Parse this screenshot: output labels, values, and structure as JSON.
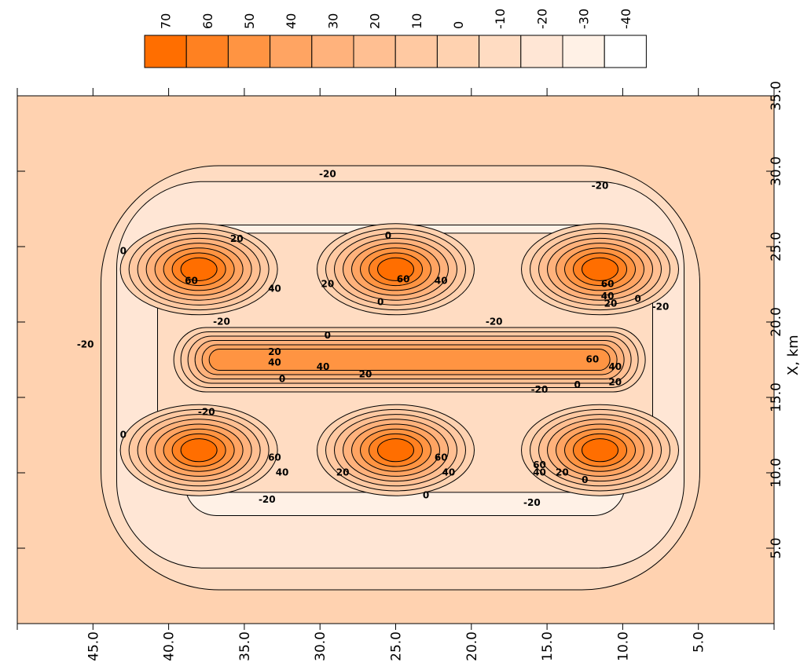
{
  "chart_data": {
    "type": "heatmap",
    "orientation_note_hidden": "",
    "legend": {
      "labels": [
        "70",
        "60",
        "50",
        "40",
        "30",
        "20",
        "10",
        "0",
        "-10",
        "-20",
        "-30",
        "-40"
      ],
      "colors": [
        "#ff6e00",
        "#ff8121",
        "#ff9442",
        "#ffa462",
        "#ffb27c",
        "#ffbf92",
        "#ffc9a2",
        "#ffd2b0",
        "#ffdcc2",
        "#ffe6d5",
        "#fff1e6",
        "#ffffff"
      ]
    },
    "x_axis": {
      "label": "X, km",
      "ticks": [
        "5.0",
        "10.0",
        "15.0",
        "20.0",
        "25.0",
        "30.0",
        "35.0"
      ],
      "range": [
        0,
        35
      ]
    },
    "y_axis": {
      "label": "",
      "ticks": [
        "5.0",
        "10.0",
        "15.0",
        "20.0",
        "25.0",
        "30.0",
        "35.0",
        "40.0",
        "45.0"
      ],
      "range": [
        0,
        50
      ]
    },
    "background_level": "0",
    "contour_levels": [
      70,
      60,
      50,
      40,
      30,
      20,
      10,
      0,
      -10,
      -20,
      -30,
      -40
    ],
    "hot_spots": [
      {
        "x": 23.5,
        "y": 38.0,
        "peak": 70
      },
      {
        "x": 23.5,
        "y": 25.0,
        "peak": 70
      },
      {
        "x": 23.5,
        "y": 11.5,
        "peak": 70
      },
      {
        "x": 11.5,
        "y": 38.0,
        "peak": 70
      },
      {
        "x": 11.5,
        "y": 25.0,
        "peak": 70
      },
      {
        "x": 11.5,
        "y": 11.5,
        "peak": 70
      },
      {
        "x": 17.5,
        "y": 24.5,
        "peak": 50
      }
    ],
    "contour_labels": [
      {
        "text": "-20",
        "x": 29.8,
        "y": 29.5
      },
      {
        "text": "-20",
        "x": 29.0,
        "y": 11.5
      },
      {
        "text": "0",
        "x": 25.7,
        "y": 25.5
      },
      {
        "text": "20",
        "x": 25.5,
        "y": 35.5
      },
      {
        "text": "0",
        "x": 24.7,
        "y": 43.0
      },
      {
        "text": "60",
        "x": 22.7,
        "y": 38.5
      },
      {
        "text": "40",
        "x": 22.2,
        "y": 33.0
      },
      {
        "text": "20",
        "x": 22.5,
        "y": 29.5
      },
      {
        "text": "60",
        "x": 22.8,
        "y": 24.5
      },
      {
        "text": "40",
        "x": 22.7,
        "y": 22.0
      },
      {
        "text": "60",
        "x": 22.5,
        "y": 11.0
      },
      {
        "text": "40",
        "x": 21.7,
        "y": 11.0
      },
      {
        "text": "20",
        "x": 21.2,
        "y": 10.8
      },
      {
        "text": "0",
        "x": 21.5,
        "y": 9.0
      },
      {
        "text": "-20",
        "x": 21.0,
        "y": 7.5
      },
      {
        "text": "0",
        "x": 21.3,
        "y": 26.0
      },
      {
        "text": "-20",
        "x": 20.0,
        "y": 36.5
      },
      {
        "text": "-20",
        "x": 20.0,
        "y": 18.5
      },
      {
        "text": "0",
        "x": 19.1,
        "y": 29.5
      },
      {
        "text": "-20",
        "x": 18.5,
        "y": 45.5
      },
      {
        "text": "20",
        "x": 18.0,
        "y": 33.0
      },
      {
        "text": "40",
        "x": 17.3,
        "y": 33.0
      },
      {
        "text": "40",
        "x": 17.0,
        "y": 29.8
      },
      {
        "text": "60",
        "x": 17.5,
        "y": 12.0
      },
      {
        "text": "40",
        "x": 17.0,
        "y": 10.5
      },
      {
        "text": "0",
        "x": 16.2,
        "y": 32.5
      },
      {
        "text": "20",
        "x": 16.5,
        "y": 27.0
      },
      {
        "text": "20",
        "x": 16.0,
        "y": 10.5
      },
      {
        "text": "-20",
        "x": 15.5,
        "y": 15.5
      },
      {
        "text": "0",
        "x": 15.8,
        "y": 13.0
      },
      {
        "text": "-20",
        "x": 14.0,
        "y": 37.5
      },
      {
        "text": "0",
        "x": 12.5,
        "y": 43.0
      },
      {
        "text": "60",
        "x": 11.0,
        "y": 33.0
      },
      {
        "text": "40",
        "x": 10.0,
        "y": 32.5
      },
      {
        "text": "20",
        "x": 10.0,
        "y": 28.5
      },
      {
        "text": "60",
        "x": 11.0,
        "y": 22.0
      },
      {
        "text": "40",
        "x": 10.0,
        "y": 21.5
      },
      {
        "text": "60",
        "x": 10.5,
        "y": 15.5
      },
      {
        "text": "40",
        "x": 10.0,
        "y": 15.5
      },
      {
        "text": "20",
        "x": 10.0,
        "y": 14.0
      },
      {
        "text": "0",
        "x": 9.5,
        "y": 12.5
      },
      {
        "text": "0",
        "x": 8.5,
        "y": 23.0
      },
      {
        "text": "-20",
        "x": 8.2,
        "y": 33.5
      },
      {
        "text": "-20",
        "x": 8.0,
        "y": 16.0
      }
    ]
  },
  "legend_title": "",
  "axis_cut_label": ""
}
